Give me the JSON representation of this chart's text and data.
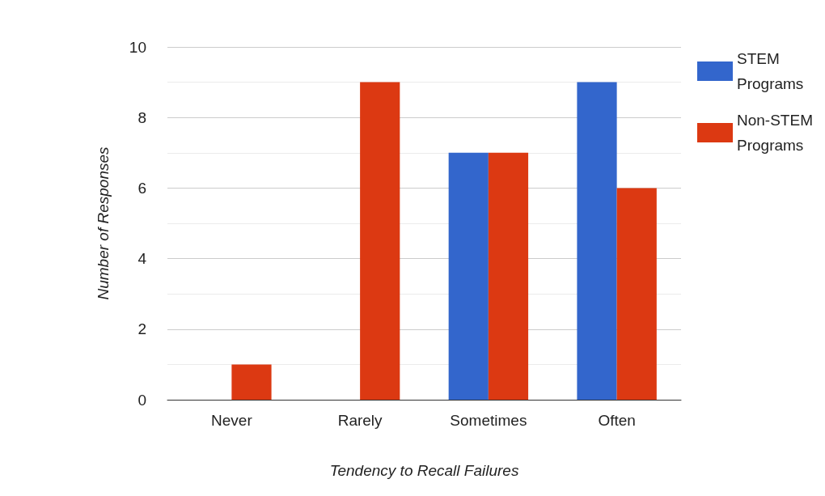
{
  "chart_data": {
    "type": "bar",
    "xlabel": "Tendency to Recall Failures",
    "ylabel": "Number of Responses",
    "categories": [
      "Never",
      "Rarely",
      "Sometimes",
      "Often"
    ],
    "series": [
      {
        "name": "STEM Programs",
        "color": "#3366cc",
        "values": [
          0,
          0,
          7,
          9
        ]
      },
      {
        "name": "Non-STEM Programs",
        "color": "#dc3912",
        "values": [
          1,
          9,
          7,
          6
        ]
      }
    ],
    "ylim": [
      0,
      10
    ],
    "yticks": [
      0,
      2,
      4,
      6,
      8,
      10
    ],
    "grid": "y",
    "legend": "right"
  }
}
